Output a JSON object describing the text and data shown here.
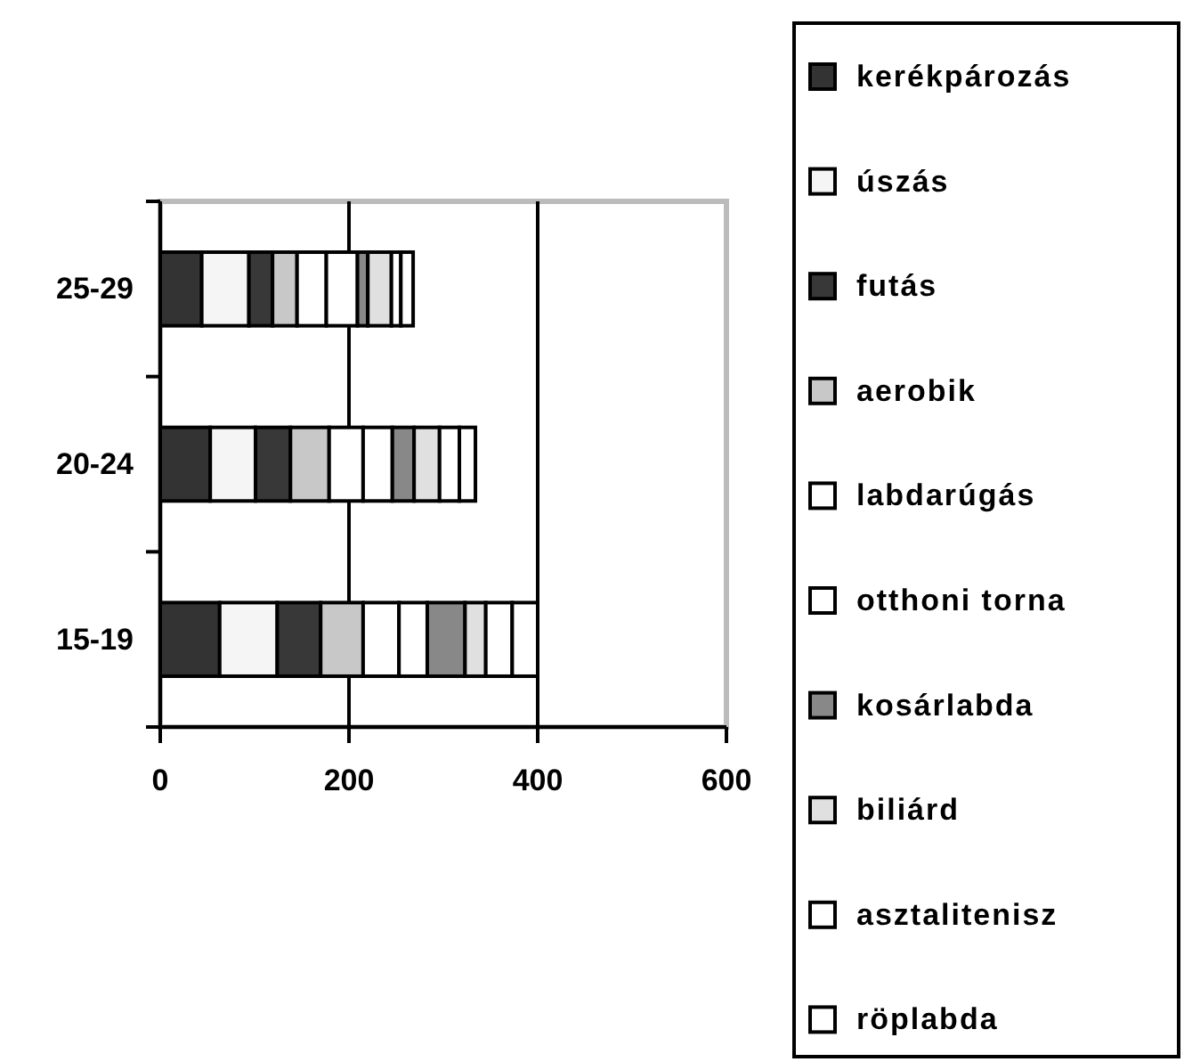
{
  "chart_data": {
    "type": "bar",
    "orientation": "horizontal",
    "stacked": true,
    "categories": [
      "25-29",
      "20-24",
      "15-19"
    ],
    "series": [
      {
        "name": "kerékpározás",
        "color": "#333333",
        "values": [
          44,
          53,
          63
        ]
      },
      {
        "name": "úszás",
        "color": "#f5f5f5",
        "values": [
          50,
          48,
          61
        ]
      },
      {
        "name": "futás",
        "color": "#383838",
        "values": [
          25,
          37,
          46
        ]
      },
      {
        "name": "aerobik",
        "color": "#c8c8c8",
        "values": [
          26,
          41,
          45
        ]
      },
      {
        "name": "labdarúgás",
        "color": "#ffffff",
        "values": [
          31,
          36,
          38
        ]
      },
      {
        "name": "otthoni torna",
        "color": "#ffffff",
        "values": [
          33,
          31,
          30
        ]
      },
      {
        "name": "kosárlabda",
        "color": "#888888",
        "values": [
          11,
          23,
          40
        ]
      },
      {
        "name": "biliárd",
        "color": "#e0e0e0",
        "values": [
          25,
          27,
          22
        ]
      },
      {
        "name": "asztalitenisz",
        "color": "#ffffff",
        "values": [
          10,
          21,
          28
        ]
      },
      {
        "name": "röplabda",
        "color": "#ffffff",
        "values": [
          13,
          17,
          27
        ]
      }
    ],
    "xlim": [
      0,
      600
    ],
    "xticks": [
      0,
      200,
      400,
      600
    ],
    "grid": "x",
    "legend": "right"
  }
}
